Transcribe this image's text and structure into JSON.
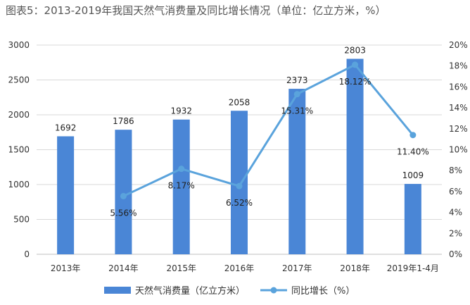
{
  "chart_data": {
    "type": "bar",
    "title": "图表5：2013-2019年我国天然气消费量及同比增长情况（单位：亿立方米，%）",
    "categories": [
      "2013年",
      "2014年",
      "2015年",
      "2016年",
      "2017年",
      "2018年",
      "2019年1-4月"
    ],
    "series": [
      {
        "name": "天然气消费量（亿立方米）",
        "type": "bar",
        "axis": "left",
        "values": [
          1692,
          1786,
          1932,
          2058,
          2373,
          2803,
          1009
        ],
        "labels": [
          "1692",
          "1786",
          "1932",
          "2058",
          "2373",
          "2803",
          "1009"
        ]
      },
      {
        "name": "同比增长（%）",
        "type": "line",
        "axis": "right",
        "values": [
          null,
          5.56,
          8.17,
          6.52,
          15.31,
          18.12,
          11.4
        ],
        "labels": [
          "",
          "5.56%",
          "8.17%",
          "6.52%",
          "15.31%",
          "18.12%",
          "11.40%"
        ]
      }
    ],
    "y_left": {
      "min": 0,
      "max": 3000,
      "ticks": [
        "0",
        "500",
        "1000",
        "1500",
        "2000",
        "2500",
        "3000"
      ]
    },
    "y_right": {
      "min": 0,
      "max": 20,
      "ticks": [
        "0%",
        "2%",
        "4%",
        "6%",
        "8%",
        "10%",
        "12%",
        "14%",
        "16%",
        "18%",
        "20%"
      ]
    },
    "grid": true,
    "legend": "bottom",
    "colors": {
      "bar": "#4a86d6",
      "line": "#5aa3dc"
    }
  }
}
